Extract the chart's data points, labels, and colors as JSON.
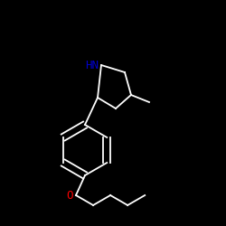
{
  "background_color": "#000000",
  "bond_color": "#ffffff",
  "N_color": "#0000cc",
  "O_color": "#ff0000",
  "N_label": "HN",
  "O_label": "O",
  "label_fontsize": 9,
  "figsize": [
    2.5,
    2.5
  ],
  "dpi": 100
}
